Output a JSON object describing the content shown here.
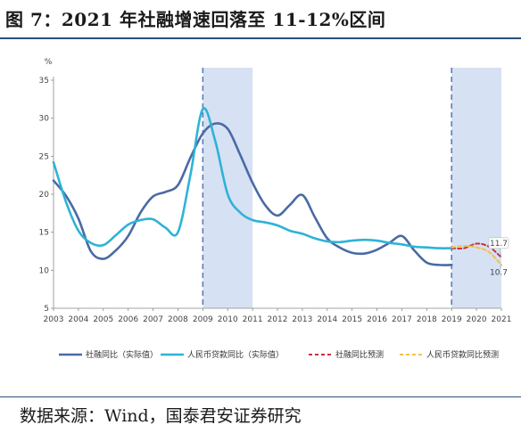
{
  "title": "图 7：2021 年社融增速回落至 11-12%区间",
  "source": "数据来源：Wind，国泰君安证券研究",
  "chart_data": {
    "type": "line",
    "ylabel": "%",
    "ylim": [
      5,
      35
    ],
    "yticks": [
      5,
      10,
      15,
      20,
      25,
      30,
      35
    ],
    "xlim": [
      2003,
      2021
    ],
    "xticks": [
      "2003",
      "2004",
      "2005",
      "2006",
      "2007",
      "2008",
      "2009",
      "2010",
      "2011",
      "2012",
      "2013",
      "2014",
      "2015",
      "2016",
      "2017",
      "2018",
      "2019",
      "2020",
      "2021"
    ],
    "grid": false,
    "legend_position": "bottom",
    "shaded_periods": [
      [
        2009,
        2011
      ],
      [
        2019,
        2021
      ]
    ],
    "series": [
      {
        "name": "社融同比（实际值）",
        "color": "#4a6aa5",
        "style": "solid",
        "x": [
          2003,
          2003.5,
          2004,
          2004.5,
          2005,
          2005.5,
          2006,
          2006.5,
          2007,
          2007.5,
          2008,
          2008.5,
          2009,
          2009.5,
          2010,
          2010.5,
          2011,
          2011.5,
          2012,
          2012.5,
          2013,
          2013.5,
          2014,
          2014.5,
          2015,
          2015.5,
          2016,
          2016.5,
          2017,
          2017.5,
          2018,
          2018.5,
          2019
        ],
        "values": [
          21.8,
          19.8,
          16.8,
          12.5,
          11.5,
          12.6,
          14.5,
          17.6,
          19.7,
          20.3,
          21.2,
          24.8,
          28.0,
          29.3,
          28.6,
          25.2,
          21.5,
          18.6,
          17.2,
          18.6,
          19.9,
          17.0,
          14.2,
          13.0,
          12.3,
          12.2,
          12.7,
          13.6,
          14.5,
          12.6,
          11.0,
          10.7,
          10.7
        ]
      },
      {
        "name": "人民币贷款同比（实际值）",
        "color": "#2eb3d6",
        "style": "solid",
        "x": [
          2003,
          2003.5,
          2004,
          2004.5,
          2005,
          2005.5,
          2006,
          2006.5,
          2007,
          2007.5,
          2008,
          2008.5,
          2009,
          2009.5,
          2010,
          2010.5,
          2011,
          2011.5,
          2012,
          2012.5,
          2013,
          2013.5,
          2014,
          2014.5,
          2015,
          2015.5,
          2016,
          2016.5,
          2017,
          2017.5,
          2018,
          2018.5,
          2019
        ],
        "values": [
          24.2,
          19.0,
          15.2,
          13.6,
          13.3,
          14.6,
          16.0,
          16.6,
          16.7,
          15.6,
          15.0,
          22.5,
          31.2,
          27.0,
          20.0,
          17.6,
          16.6,
          16.3,
          15.9,
          15.2,
          14.8,
          14.2,
          13.8,
          13.7,
          13.9,
          14.0,
          13.9,
          13.6,
          13.4,
          13.1,
          13.0,
          12.9,
          12.9
        ]
      },
      {
        "name": "社融同比预测",
        "color": "#c8323c",
        "style": "dashed",
        "x": [
          2019,
          2019.5,
          2020,
          2020.5,
          2021
        ],
        "values": [
          12.9,
          12.9,
          13.5,
          13.1,
          11.7
        ]
      },
      {
        "name": "人民币贷款同比预测",
        "color": "#f2c14e",
        "style": "dashed",
        "x": [
          2019,
          2019.5,
          2020,
          2020.5,
          2021
        ],
        "values": [
          13.0,
          13.2,
          13.0,
          12.4,
          10.7
        ]
      }
    ],
    "annotations": [
      {
        "x": 2021,
        "y": 11.7,
        "text": "11.7"
      },
      {
        "x": 2021,
        "y": 10.7,
        "text": "10.7"
      }
    ]
  }
}
